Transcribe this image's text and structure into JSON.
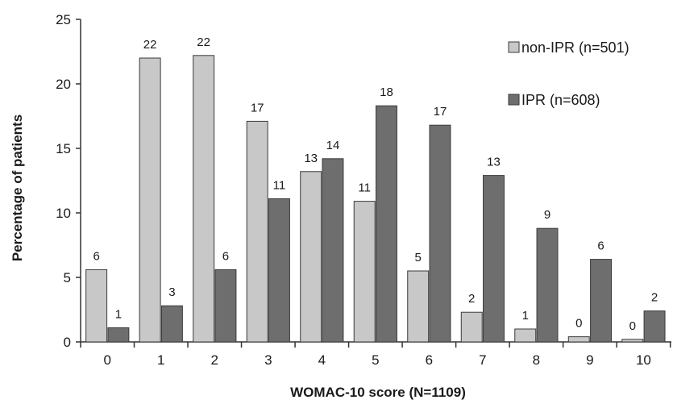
{
  "chart_data": {
    "type": "bar",
    "categories": [
      "0",
      "1",
      "2",
      "3",
      "4",
      "5",
      "6",
      "7",
      "8",
      "9",
      "10"
    ],
    "series": [
      {
        "name": "non-IPR (n=501)",
        "values": [
          5.6,
          22.0,
          22.2,
          17.1,
          13.2,
          10.9,
          5.5,
          2.3,
          1.0,
          0.4,
          0.2
        ],
        "labels": [
          "6",
          "22",
          "22",
          "17",
          "13",
          "11",
          "5",
          "2",
          "1",
          "0",
          "0"
        ],
        "color": "#c8c8c8"
      },
      {
        "name": "IPR (n=608)",
        "values": [
          1.1,
          2.8,
          5.6,
          11.1,
          14.2,
          18.3,
          16.8,
          12.9,
          8.8,
          6.4,
          2.4
        ],
        "labels": [
          "1",
          "3",
          "6",
          "11",
          "14",
          "18",
          "17",
          "13",
          "9",
          "6",
          "2"
        ],
        "color": "#6e6e6e"
      }
    ],
    "title": "",
    "xlabel": "WOMAC-10 score (N=1109)",
    "ylabel": "Percentage of patients",
    "ylim": [
      0,
      25
    ],
    "yticks": [
      "0",
      "5",
      "10",
      "15",
      "20",
      "25"
    ],
    "grid": false,
    "legend_position": "top-right"
  }
}
